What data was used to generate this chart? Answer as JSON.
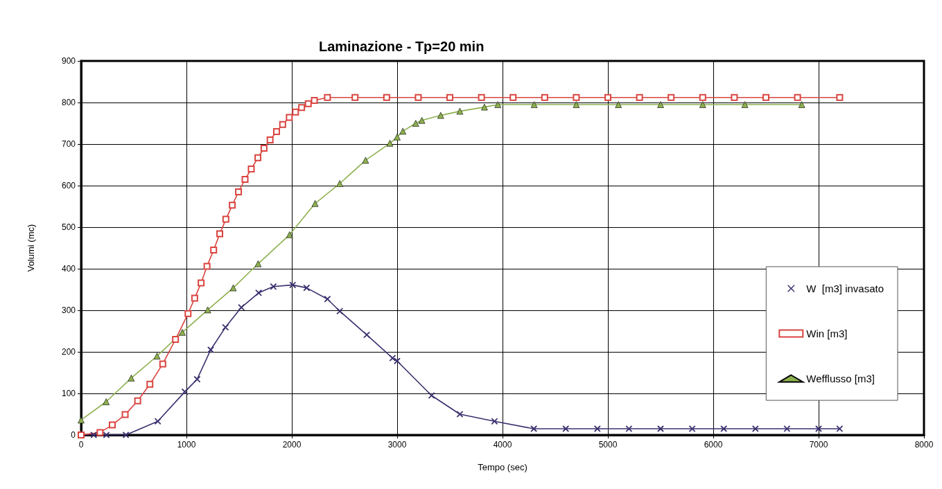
{
  "chart_data": {
    "type": "line",
    "title": "Laminazione - Tp=20 min",
    "xlabel": "Tempo (sec)",
    "ylabel": "Volumi (mc)",
    "xlim": [
      0,
      8000
    ],
    "xticks": [
      0,
      1000,
      2000,
      3000,
      4000,
      5000,
      6000,
      7000,
      8000
    ],
    "ylim": [
      0,
      900
    ],
    "yticks": [
      0,
      100,
      200,
      300,
      400,
      500,
      600,
      700,
      800,
      900
    ],
    "grid": true,
    "legend": "right",
    "line_style": "solid",
    "series": [
      {
        "name": "W  [m3] invasato",
        "color": "#3b2f6e",
        "marker": "cross",
        "x": [
          0,
          120,
          240,
          425,
          728,
          985,
          1101,
          1230,
          1370,
          1521,
          1685,
          1825,
          2008,
          2140,
          2338,
          2455,
          2711,
          2956,
          3000,
          3326,
          3595,
          3924,
          4297,
          4600,
          4900,
          5200,
          5500,
          5800,
          6100,
          6400,
          6700,
          7000,
          7200
        ],
        "values": [
          0,
          0,
          0,
          0,
          33,
          104,
          134,
          205,
          259,
          307,
          342,
          357,
          361,
          354,
          327,
          298,
          241,
          185,
          178,
          95,
          50,
          33,
          15,
          15,
          15,
          15,
          15,
          15,
          15,
          15,
          15,
          15,
          15
        ]
      },
      {
        "name": "Win [m3]",
        "color": "#d9443f",
        "marker": "square",
        "x": [
          0,
          180,
          296,
          418,
          537,
          653,
          775,
          896,
          1015,
          1078,
          1139,
          1195,
          1258,
          1316,
          1374,
          1435,
          1494,
          1556,
          1615,
          1678,
          1736,
          1794,
          1855,
          1913,
          1976,
          2035,
          2093,
          2156,
          2214,
          2338,
          2600,
          2900,
          3200,
          3500,
          3800,
          4100,
          4400,
          4700,
          5000,
          5300,
          5600,
          5900,
          6200,
          6500,
          6800,
          7200
        ],
        "values": [
          0,
          6,
          24,
          49,
          82,
          122,
          171,
          230,
          292,
          329,
          366,
          406,
          445,
          484,
          519,
          553,
          585,
          615,
          640,
          667,
          690,
          710,
          730,
          747,
          764,
          777,
          788,
          797,
          805,
          812,
          812,
          812,
          812,
          812,
          812,
          812,
          812,
          812,
          812,
          812,
          812,
          812,
          812,
          812,
          812,
          812
        ]
      },
      {
        "name": "Wefflusso [m3]",
        "color": "#8db04f",
        "marker": "triangle",
        "x": [
          0,
          238,
          476,
          721,
          961,
          1202,
          1444,
          1680,
          1979,
          2221,
          2455,
          2700,
          2931,
          3000,
          3054,
          3176,
          3234,
          3413,
          3595,
          3828,
          3956,
          4300,
          4700,
          5100,
          5500,
          5900,
          6300,
          6840
        ],
        "values": [
          36,
          80,
          137,
          190,
          247,
          301,
          354,
          412,
          482,
          557,
          605,
          661,
          702,
          717,
          731,
          750,
          757,
          769,
          779,
          789,
          795,
          795,
          795,
          795,
          795,
          795,
          795,
          795
        ]
      }
    ]
  }
}
